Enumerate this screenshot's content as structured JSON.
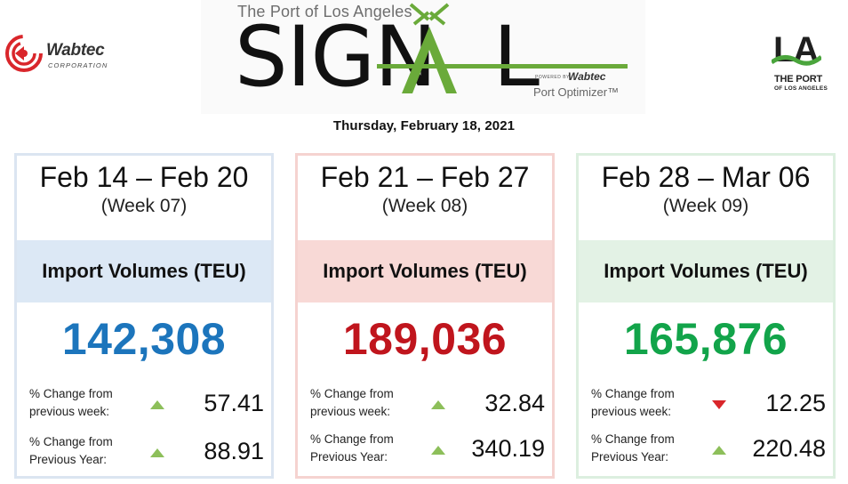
{
  "header": {
    "left_logo": {
      "name": "Wabtec",
      "subtitle": "CORPORATION",
      "mark_color": "#d9262b"
    },
    "signal": {
      "top_line": "The Port of Los Angeles",
      "title_part1": "SIGN",
      "title_part2": "L",
      "powered_by": "POWERED BY",
      "powered_brand": "Wabtec",
      "product": "Port Optimizer™",
      "accent_color": "#6aaa3a"
    },
    "right_logo": {
      "letters": "LA",
      "line1": "THE PORT",
      "line2": "OF LOS ANGELES",
      "accent_color": "#4aa53c"
    },
    "date": "Thursday, February 18, 2021"
  },
  "cards": [
    {
      "dates": "Feb 14 – Feb 20",
      "week": "(Week 07)",
      "metric_label": "Import Volumes (TEU)",
      "value": "142,308",
      "value_color": "#1c75bc",
      "band_color": "#dce8f5",
      "border_color": "#dbe5f1",
      "stats": [
        {
          "label_line1": "% Change from",
          "label_line2": "previous week:",
          "direction": "up",
          "value": "57.41"
        },
        {
          "label_line1": "% Change from",
          "label_line2": "Previous Year:",
          "direction": "up",
          "value": "88.91"
        }
      ]
    },
    {
      "dates": "Feb 21 – Feb 27",
      "week": "(Week 08)",
      "metric_label": "Import Volumes (TEU)",
      "value": "189,036",
      "value_color": "#c0151d",
      "band_color": "#f8d9d6",
      "border_color": "#f5d3d0",
      "stats": [
        {
          "label_line1": "% Change from",
          "label_line2": "previous week:",
          "direction": "up",
          "value": "32.84"
        },
        {
          "label_line1": "% Change from",
          "label_line2": "Previous Year:",
          "direction": "up",
          "value": "340.19"
        }
      ]
    },
    {
      "dates": "Feb 28 – Mar 06",
      "week": "(Week 09)",
      "metric_label": "Import Volumes (TEU)",
      "value": "165,876",
      "value_color": "#12a44a",
      "band_color": "#e3f2e5",
      "border_color": "#dcefdf",
      "stats": [
        {
          "label_line1": "% Change from",
          "label_line2": "previous week:",
          "direction": "down",
          "value": "12.25"
        },
        {
          "label_line1": "% Change from",
          "label_line2": "Previous Year:",
          "direction": "up",
          "value": "220.48"
        }
      ]
    }
  ],
  "arrows": {
    "up_color": "#8dbf5a",
    "down_color": "#d9262b"
  }
}
